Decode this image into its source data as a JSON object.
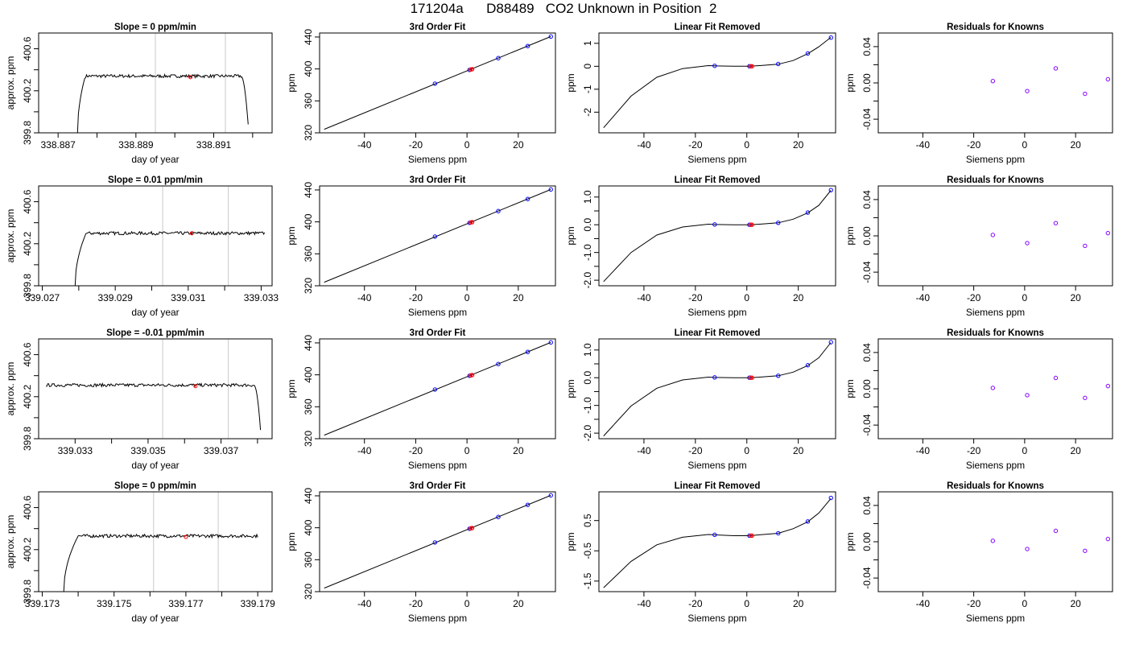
{
  "page_title": "171204a      D88489   CO2 Unknown in Position  2",
  "colors": {
    "trace": "#000000",
    "known": "#0000ff",
    "unknown": "#ff0000",
    "residual": "#8800ff",
    "marker_line": "#c8c8c8"
  },
  "chart_data": [
    {
      "type": "line",
      "title": "Slope =  0  ppm/min",
      "xlabel": "day of year",
      "ylabel": "approx. ppm",
      "xlim": [
        338.8865,
        338.8925
      ],
      "ylim": [
        399.8,
        400.75
      ],
      "xticks": [
        338.887,
        338.888,
        338.889,
        338.89,
        338.891,
        338.892
      ],
      "xticklabels": [
        "338.887",
        "",
        "338.889",
        "",
        "338.891",
        ""
      ],
      "yticks": [
        399.8,
        400.0,
        400.2,
        400.4,
        400.6
      ],
      "yticklabels": [
        "399.8",
        "",
        "400.2",
        "",
        "400.6"
      ],
      "vlines": [
        338.8895,
        338.8913
      ],
      "trace": {
        "start": 338.8875,
        "rise_end": 338.8877,
        "plateau_end": 338.8917,
        "end": 338.8919,
        "start_value": 399.8,
        "level": 400.34,
        "end_value": 399.8
      },
      "marker": {
        "x": 338.8904,
        "y": 400.33
      }
    },
    {
      "type": "line",
      "title": "Slope =  0.01  ppm/min",
      "xlabel": "day of year",
      "ylabel": "approx. ppm",
      "xlim": [
        339.0269,
        339.0333
      ],
      "ylim": [
        399.8,
        400.75
      ],
      "xticks": [
        339.027,
        339.028,
        339.029,
        339.03,
        339.031,
        339.032,
        339.033
      ],
      "xticklabels": [
        "339.027",
        "",
        "339.029",
        "",
        "339.031",
        "",
        "339.033"
      ],
      "yticks": [
        399.8,
        400.0,
        400.2,
        400.4,
        400.6
      ],
      "yticklabels": [
        "399.8",
        "",
        "400.2",
        "",
        "400.6"
      ],
      "vlines": [
        339.0303,
        339.0321
      ],
      "trace": {
        "start": 339.0279,
        "rise_end": 339.0282,
        "plateau_end": 339.0331,
        "end": 339.0331,
        "start_value": 399.8,
        "level": 400.3,
        "end_value": 400.32
      },
      "marker": {
        "x": 339.0311,
        "y": 400.3
      }
    },
    {
      "type": "line",
      "title": "Slope =  -0.01  ppm/min",
      "xlabel": "day of year",
      "ylabel": "approx. ppm",
      "xlim": [
        339.032,
        339.0384
      ],
      "ylim": [
        399.8,
        400.75
      ],
      "xticks": [
        339.033,
        339.034,
        339.035,
        339.036,
        339.037,
        339.038
      ],
      "xticklabels": [
        "339.033",
        "",
        "339.035",
        "",
        "339.037",
        ""
      ],
      "yticks": [
        399.8,
        400.0,
        400.2,
        400.4,
        400.6
      ],
      "yticklabels": [
        "399.8",
        "",
        "400.2",
        "",
        "400.6"
      ],
      "vlines": [
        339.0354,
        339.0372
      ],
      "trace": {
        "start": 339.0322,
        "rise_end": 339.0322,
        "plateau_end": 339.0379,
        "end": 339.0381,
        "start_value": 400.3,
        "level": 400.31,
        "end_value": 399.8
      },
      "marker": {
        "x": 339.0363,
        "y": 400.3
      }
    },
    {
      "type": "line",
      "title": "Slope =  0  ppm/min",
      "xlabel": "day of year",
      "ylabel": "approx. ppm",
      "xlim": [
        339.1729,
        339.1794
      ],
      "ylim": [
        399.8,
        400.75
      ],
      "xticks": [
        339.173,
        339.174,
        339.175,
        339.176,
        339.177,
        339.178,
        339.179
      ],
      "xticklabels": [
        "339.173",
        "",
        "339.175",
        "",
        "339.177",
        "",
        "339.179"
      ],
      "yticks": [
        399.8,
        400.0,
        400.2,
        400.4,
        400.6
      ],
      "yticklabels": [
        "399.8",
        "",
        "400.2",
        "",
        "400.6"
      ],
      "vlines": [
        339.1761,
        339.1779
      ],
      "trace": {
        "start": 339.1736,
        "rise_end": 339.174,
        "plateau_end": 339.179,
        "end": 339.179,
        "start_value": 399.8,
        "level": 400.33,
        "end_value": 400.33
      },
      "marker": {
        "x": 339.177,
        "y": 400.32
      }
    },
    {
      "type": "scatter",
      "title": "3rd Order Fit",
      "xlabel": "Siemens ppm",
      "ylabel": "ppm",
      "xlim": [
        -57.5,
        34.5
      ],
      "ylim": [
        320,
        445
      ],
      "xticks": [
        -40,
        -20,
        0,
        20
      ],
      "xticklabels": [
        "-40",
        "-20",
        "0",
        "20"
      ],
      "yticks": [
        320,
        360,
        400,
        440
      ],
      "yticklabels": [
        "320",
        "360",
        "400",
        "440"
      ],
      "line": {
        "x": [
          -55.7,
          32.7
        ],
        "y": [
          324.4,
          440.6
        ]
      },
      "knowns": {
        "x": [
          -12.5,
          1.0,
          12.2,
          23.7,
          32.7
        ],
        "y": [
          381.6,
          398.8,
          413.5,
          428.7,
          440.6
        ]
      },
      "unknowns": {
        "x": [
          1.5,
          2.0
        ],
        "y": [
          399.3,
          399.7
        ]
      }
    },
    {
      "type": "scatter",
      "title": "3rd Order Fit",
      "xlabel": "Siemens ppm",
      "ylabel": "ppm",
      "xlim": [
        -57.5,
        34.5
      ],
      "ylim": [
        320,
        445
      ],
      "xticks": [
        -40,
        -20,
        0,
        20
      ],
      "xticklabels": [
        "-40",
        "-20",
        "0",
        "20"
      ],
      "yticks": [
        320,
        360,
        400,
        440
      ],
      "yticklabels": [
        "320",
        "360",
        "400",
        "440"
      ],
      "line": {
        "x": [
          -55.7,
          32.7
        ],
        "y": [
          324.4,
          440.6
        ]
      },
      "knowns": {
        "x": [
          -12.5,
          1.0,
          12.2,
          23.7,
          32.7
        ],
        "y": [
          381.6,
          398.8,
          413.5,
          428.7,
          440.6
        ]
      },
      "unknowns": {
        "x": [
          1.5,
          2.0
        ],
        "y": [
          399.3,
          399.7
        ]
      }
    },
    {
      "type": "scatter",
      "title": "3rd Order Fit",
      "xlabel": "Siemens ppm",
      "ylabel": "ppm",
      "xlim": [
        -57.5,
        34.5
      ],
      "ylim": [
        320,
        445
      ],
      "xticks": [
        -40,
        -20,
        0,
        20
      ],
      "xticklabels": [
        "-40",
        "-20",
        "0",
        "20"
      ],
      "yticks": [
        320,
        360,
        400,
        440
      ],
      "yticklabels": [
        "320",
        "360",
        "400",
        "440"
      ],
      "line": {
        "x": [
          -55.7,
          32.7
        ],
        "y": [
          324.4,
          440.6
        ]
      },
      "knowns": {
        "x": [
          -12.5,
          1.0,
          12.2,
          23.7,
          32.7
        ],
        "y": [
          381.6,
          398.8,
          413.5,
          428.7,
          440.6
        ]
      },
      "unknowns": {
        "x": [
          1.5,
          2.0
        ],
        "y": [
          399.3,
          399.7
        ]
      }
    },
    {
      "type": "scatter",
      "title": "3rd Order Fit",
      "xlabel": "Siemens ppm",
      "ylabel": "ppm",
      "xlim": [
        -57.5,
        34.5
      ],
      "ylim": [
        320,
        445
      ],
      "xticks": [
        -40,
        -20,
        0,
        20
      ],
      "xticklabels": [
        "-40",
        "-20",
        "0",
        "20"
      ],
      "yticks": [
        320,
        360,
        400,
        440
      ],
      "yticklabels": [
        "320",
        "360",
        "400",
        "440"
      ],
      "line": {
        "x": [
          -55.7,
          32.7
        ],
        "y": [
          324.4,
          440.6
        ]
      },
      "knowns": {
        "x": [
          -12.5,
          1.0,
          12.2,
          23.7,
          32.7
        ],
        "y": [
          381.6,
          398.8,
          413.5,
          428.7,
          440.6
        ]
      },
      "unknowns": {
        "x": [
          1.5,
          2.0
        ],
        "y": [
          399.3,
          399.7
        ]
      }
    },
    {
      "type": "scatter",
      "title": "Linear Fit Removed",
      "xlabel": "Siemens ppm",
      "ylabel": "ppm",
      "xlim": [
        -57.5,
        34.5
      ],
      "ylim": [
        -2.9,
        1.45
      ],
      "xticks": [
        -40,
        -20,
        0,
        20
      ],
      "xticklabels": [
        "-40",
        "-20",
        "0",
        "20"
      ],
      "yticks": [
        -2,
        -1,
        0,
        1
      ],
      "yticklabels": [
        "-2",
        "-1",
        "0",
        "1"
      ],
      "curve": {
        "x": [
          -55.7,
          -45,
          -35,
          -25,
          -15,
          -12.5,
          -5,
          1,
          5,
          12.2,
          18,
          23.7,
          28,
          32.7
        ],
        "y": [
          -2.68,
          -1.3,
          -0.48,
          -0.1,
          0.03,
          0.02,
          0.0,
          0.0,
          0.03,
          0.09,
          0.25,
          0.55,
          0.85,
          1.26
        ]
      },
      "knowns": {
        "x": [
          -12.5,
          1.0,
          12.2,
          23.7,
          32.7
        ],
        "y": [
          0.02,
          0.0,
          0.1,
          0.56,
          1.25
        ]
      },
      "unknowns": {
        "x": [
          1.5,
          2.0
        ],
        "y": [
          0.0,
          0.0
        ]
      }
    },
    {
      "type": "scatter",
      "title": "Linear Fit Removed",
      "xlabel": "Siemens ppm",
      "ylabel": "ppm",
      "xlim": [
        -57.5,
        34.5
      ],
      "ylim": [
        -2.2,
        1.4
      ],
      "xticks": [
        -40,
        -20,
        0,
        20
      ],
      "xticklabels": [
        "-40",
        "-20",
        "0",
        "20"
      ],
      "yticks": [
        -2.0,
        -1.5,
        -1.0,
        -0.5,
        0.0,
        0.5,
        1.0
      ],
      "yticklabels": [
        "-2.0",
        "",
        "-1.0",
        "",
        "0.0",
        "",
        "1.0"
      ],
      "curve": {
        "x": [
          -55.7,
          -45,
          -35,
          -25,
          -15,
          -12.5,
          -5,
          1,
          5,
          12.2,
          18,
          23.7,
          28,
          32.7
        ],
        "y": [
          -2.05,
          -1.0,
          -0.37,
          -0.08,
          0.02,
          0.01,
          0.0,
          0.0,
          0.02,
          0.07,
          0.2,
          0.43,
          0.7,
          1.24
        ]
      },
      "knowns": {
        "x": [
          -12.5,
          1.0,
          12.2,
          23.7,
          32.7
        ],
        "y": [
          0.01,
          0.0,
          0.07,
          0.44,
          1.25
        ]
      },
      "unknowns": {
        "x": [
          1.5,
          2.0
        ],
        "y": [
          0.0,
          0.0
        ]
      }
    },
    {
      "type": "scatter",
      "title": "Linear Fit Removed",
      "xlabel": "Siemens ppm",
      "ylabel": "ppm",
      "xlim": [
        -57.5,
        34.5
      ],
      "ylim": [
        -2.2,
        1.4
      ],
      "xticks": [
        -40,
        -20,
        0,
        20
      ],
      "xticklabels": [
        "-40",
        "-20",
        "0",
        "20"
      ],
      "yticks": [
        -2.0,
        -1.5,
        -1.0,
        -0.5,
        0.0,
        0.5,
        1.0
      ],
      "yticklabels": [
        "-2.0",
        "",
        "-1.0",
        "",
        "0.0",
        "",
        "1.0"
      ],
      "curve": {
        "x": [
          -55.7,
          -45,
          -35,
          -25,
          -15,
          -12.5,
          -5,
          1,
          5,
          12.2,
          18,
          23.7,
          28,
          32.7
        ],
        "y": [
          -2.1,
          -1.02,
          -0.38,
          -0.08,
          0.02,
          0.01,
          0.0,
          0.0,
          0.02,
          0.07,
          0.2,
          0.44,
          0.72,
          1.27
        ]
      },
      "knowns": {
        "x": [
          -12.5,
          1.0,
          12.2,
          23.7,
          32.7
        ],
        "y": [
          0.01,
          0.0,
          0.07,
          0.45,
          1.28
        ]
      },
      "unknowns": {
        "x": [
          1.5,
          2.0
        ],
        "y": [
          0.0,
          0.0
        ]
      }
    },
    {
      "type": "scatter",
      "title": "Linear Fit Removed",
      "xlabel": "Siemens ppm",
      "ylabel": "ppm",
      "xlim": [
        -57.5,
        34.5
      ],
      "ylim": [
        -1.85,
        1.45
      ],
      "xticks": [
        -40,
        -20,
        0,
        20
      ],
      "xticklabels": [
        "-40",
        "-20",
        "0",
        "20"
      ],
      "yticks": [
        -1.5,
        -0.5,
        0.5
      ],
      "yticklabels": [
        "-1.5",
        "-0.5",
        "0.5"
      ],
      "curve": {
        "x": [
          -55.7,
          -45,
          -35,
          -25,
          -15,
          -12.5,
          -5,
          1,
          5,
          12.2,
          18,
          23.7,
          28,
          32.7
        ],
        "y": [
          -1.72,
          -0.85,
          -0.3,
          -0.05,
          0.04,
          0.03,
          0.0,
          0.0,
          0.03,
          0.08,
          0.23,
          0.46,
          0.75,
          1.23
        ]
      },
      "knowns": {
        "x": [
          -12.5,
          1.0,
          12.2,
          23.7,
          32.7
        ],
        "y": [
          0.03,
          0.0,
          0.08,
          0.47,
          1.25
        ]
      },
      "unknowns": {
        "x": [
          1.5,
          2.0
        ],
        "y": [
          0.0,
          0.0
        ]
      }
    },
    {
      "type": "scatter",
      "title": "Residuals for Knowns",
      "xlabel": "Siemens ppm",
      "ylabel": "ppm",
      "xlim": [
        -57.5,
        34.5
      ],
      "ylim": [
        -0.055,
        0.055
      ],
      "xticks": [
        -40,
        -20,
        0,
        20
      ],
      "xticklabels": [
        "-40",
        "-20",
        "0",
        "20"
      ],
      "yticks": [
        -0.04,
        -0.02,
        0.0,
        0.02,
        0.04
      ],
      "yticklabels": [
        "-0.04",
        "",
        "0.00",
        "",
        "0.04"
      ],
      "residuals": {
        "x": [
          -12.5,
          1.0,
          12.2,
          23.7,
          32.7
        ],
        "y": [
          0.002,
          -0.009,
          0.016,
          -0.012,
          0.004
        ]
      }
    },
    {
      "type": "scatter",
      "title": "Residuals for Knowns",
      "xlabel": "Siemens ppm",
      "ylabel": "ppm",
      "xlim": [
        -57.5,
        34.5
      ],
      "ylim": [
        -0.055,
        0.055
      ],
      "xticks": [
        -40,
        -20,
        0,
        20
      ],
      "xticklabels": [
        "-40",
        "-20",
        "0",
        "20"
      ],
      "yticks": [
        -0.04,
        -0.02,
        0.0,
        0.02,
        0.04
      ],
      "yticklabels": [
        "-0.04",
        "",
        "0.00",
        "",
        "0.04"
      ],
      "residuals": {
        "x": [
          -12.5,
          1.0,
          12.2,
          23.7,
          32.7
        ],
        "y": [
          0.001,
          -0.008,
          0.014,
          -0.011,
          0.003
        ]
      }
    },
    {
      "type": "scatter",
      "title": "Residuals for Knowns",
      "xlabel": "Siemens ppm",
      "ylabel": "ppm",
      "xlim": [
        -57.5,
        34.5
      ],
      "ylim": [
        -0.055,
        0.055
      ],
      "xticks": [
        -40,
        -20,
        0,
        20
      ],
      "xticklabels": [
        "-40",
        "-20",
        "0",
        "20"
      ],
      "yticks": [
        -0.04,
        -0.02,
        0.0,
        0.02,
        0.04
      ],
      "yticklabels": [
        "-0.04",
        "",
        "0.00",
        "",
        "0.04"
      ],
      "residuals": {
        "x": [
          -12.5,
          1.0,
          12.2,
          23.7,
          32.7
        ],
        "y": [
          0.001,
          -0.007,
          0.012,
          -0.01,
          0.003
        ]
      }
    },
    {
      "type": "scatter",
      "title": "Residuals for Knowns",
      "xlabel": "Siemens ppm",
      "ylabel": "ppm",
      "xlim": [
        -57.5,
        34.5
      ],
      "ylim": [
        -0.055,
        0.055
      ],
      "xticks": [
        -40,
        -20,
        0,
        20
      ],
      "xticklabels": [
        "-40",
        "-20",
        "0",
        "20"
      ],
      "yticks": [
        -0.04,
        -0.02,
        0.0,
        0.02,
        0.04
      ],
      "yticklabels": [
        "-0.04",
        "",
        "0.00",
        "",
        "0.04"
      ],
      "residuals": {
        "x": [
          -12.5,
          1.0,
          12.2,
          23.7,
          32.7
        ],
        "y": [
          0.001,
          -0.008,
          0.012,
          -0.01,
          0.003
        ]
      }
    }
  ]
}
